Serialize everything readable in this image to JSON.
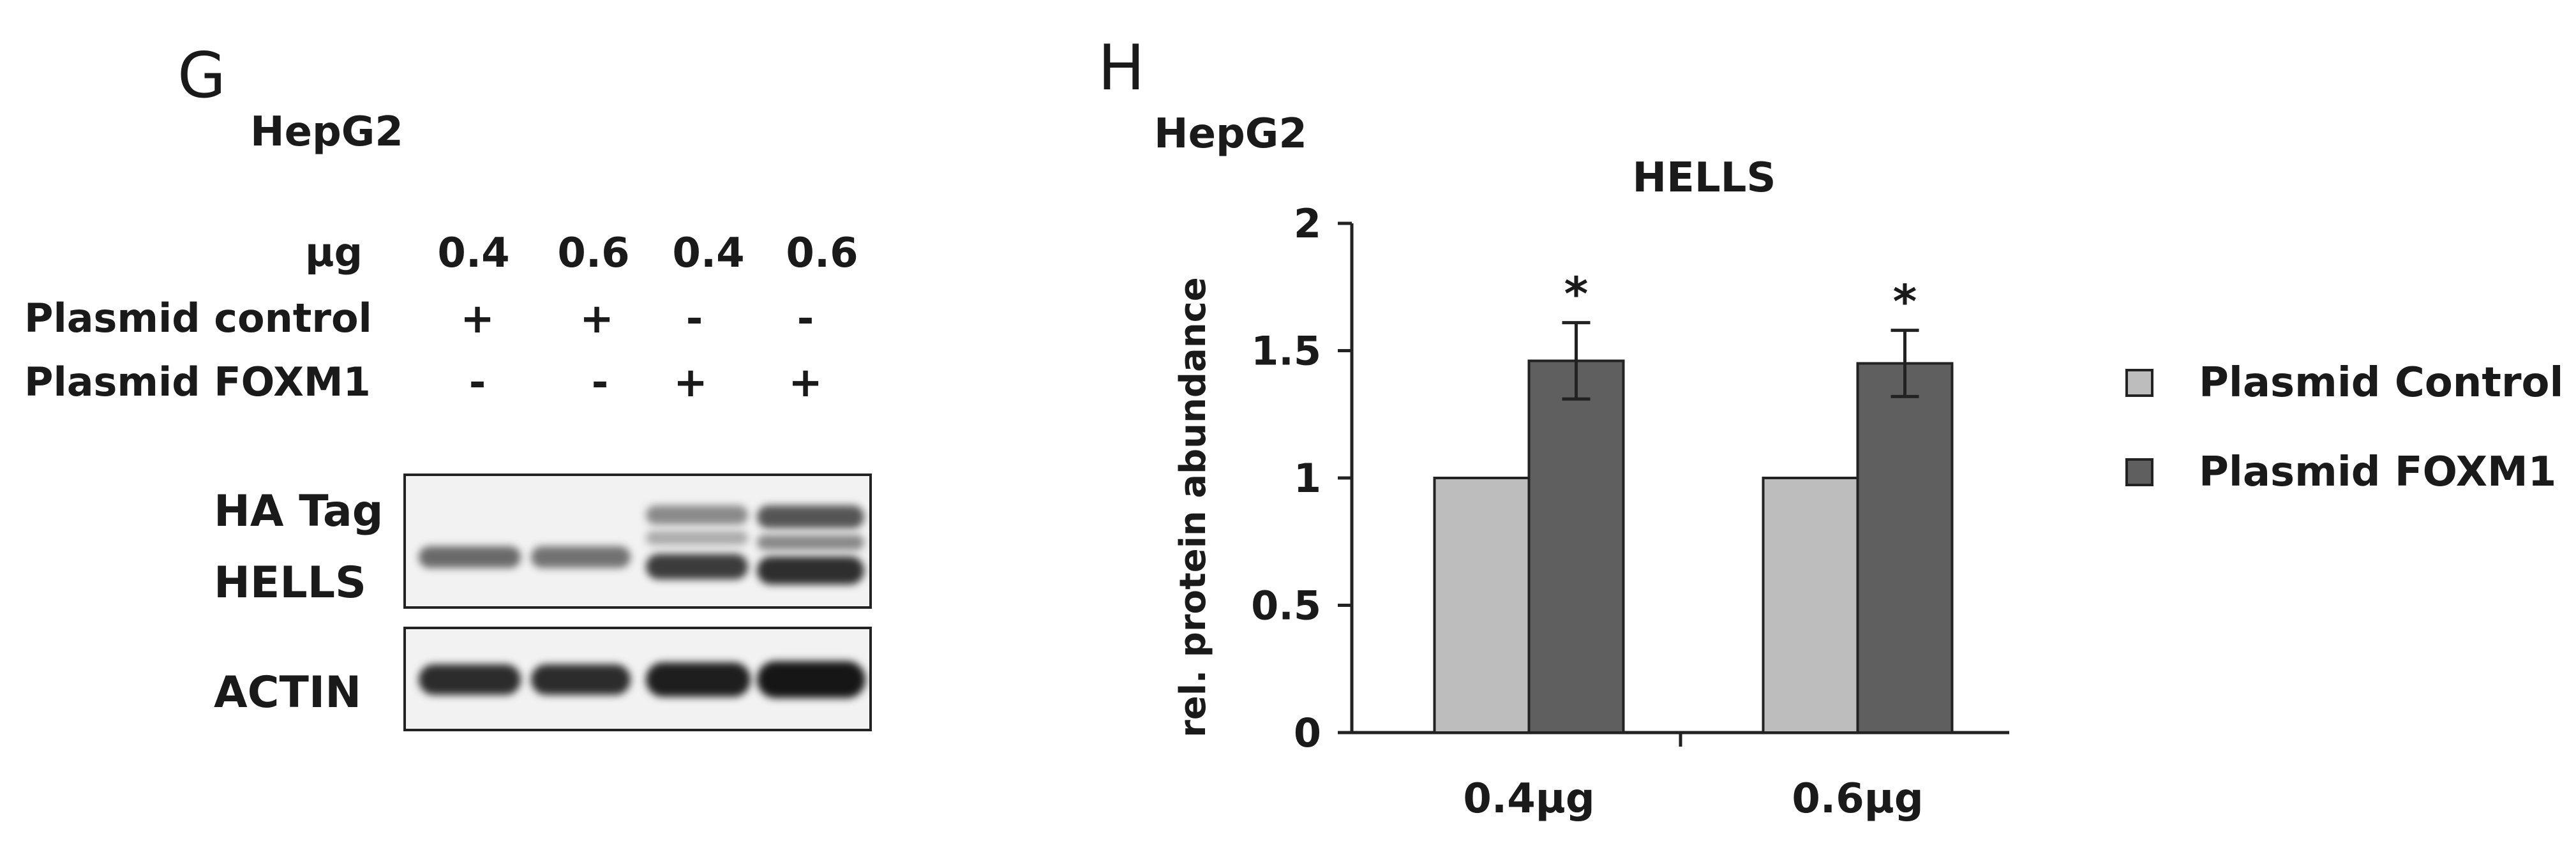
{
  "panel_g": {
    "letter": "G",
    "cell_line": "HepG2",
    "row_labels": {
      "amount": "µg",
      "plasmid_control": "Plasmid control",
      "plasmid_foxm1": "Plasmid FOXM1"
    },
    "lanes": [
      {
        "amount": "0.4",
        "control": "+",
        "foxm1": "-"
      },
      {
        "amount": "0.6",
        "control": "+",
        "foxm1": "-"
      },
      {
        "amount": "0.4",
        "control": "-",
        "foxm1": "+"
      },
      {
        "amount": "0.6",
        "control": "-",
        "foxm1": "+"
      }
    ],
    "blot_labels": {
      "ha_tag": "HA Tag",
      "hells": "HELLS",
      "actin": "ACTIN"
    }
  },
  "panel_h": {
    "letter": "H",
    "cell_line": "HepG2"
  },
  "chart_data": {
    "type": "bar",
    "title": "HELLS",
    "ylabel": "rel. protein abundance",
    "xlabel": "",
    "categories": [
      "0.4µg",
      "0.6µg"
    ],
    "ylim": [
      0,
      2
    ],
    "yticks": [
      "0",
      "0.5",
      "1",
      "1.5",
      "2"
    ],
    "series": [
      {
        "name": "Plasmid Control",
        "values": [
          1.0,
          1.0
        ],
        "color": "#bdbdbd"
      },
      {
        "name": "Plasmid FOXM1",
        "values": [
          1.46,
          1.45
        ],
        "errors": [
          0.15,
          0.13
        ],
        "color": "#5f5f5f",
        "annotations": [
          "*",
          "*"
        ]
      }
    ],
    "legend_position": "right",
    "grid": false
  }
}
